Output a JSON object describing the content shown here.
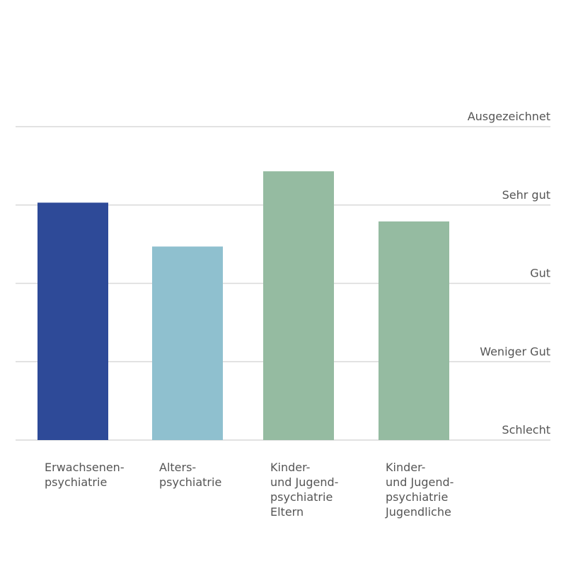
{
  "chart_data": {
    "type": "bar",
    "categories": [
      [
        "Erwachsenen-",
        "psychiatrie"
      ],
      [
        "Alters-",
        "psychiatrie"
      ],
      [
        "Kinder-",
        "und Jugend-",
        "psychiatrie",
        "Eltern"
      ],
      [
        "Kinder-",
        "und Jugend-",
        "psychiatrie",
        "Jugendliche"
      ]
    ],
    "values": [
      3.03,
      2.47,
      3.43,
      2.79
    ],
    "colors": [
      "#2e4a98",
      "#8fc0cf",
      "#95bba1",
      "#95bba1"
    ],
    "ylim": [
      0,
      4
    ],
    "yticks": [
      {
        "value": 0,
        "label": "Schlecht"
      },
      {
        "value": 1,
        "label": "Weniger Gut"
      },
      {
        "value": 2,
        "label": "Gut"
      },
      {
        "value": 3,
        "label": "Sehr gut"
      },
      {
        "value": 4,
        "label": "Ausgezeichnet"
      }
    ],
    "grid": true,
    "title": "",
    "xlabel": "",
    "ylabel": ""
  }
}
